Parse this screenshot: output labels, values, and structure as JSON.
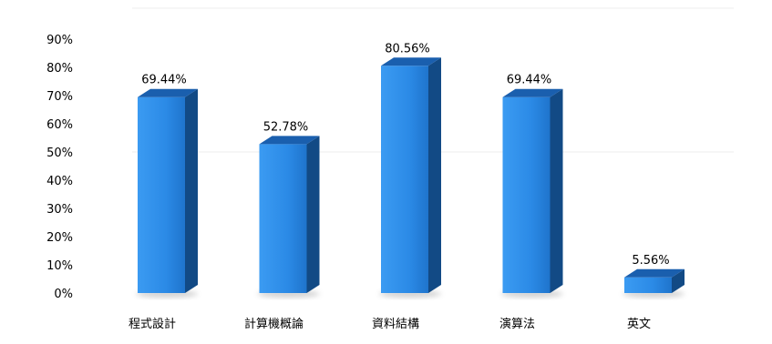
{
  "chart_data": {
    "type": "bar",
    "categories": [
      "程式設計",
      "計算機概論",
      "資料結構",
      "演算法",
      "英文"
    ],
    "values": [
      69.44,
      52.78,
      80.56,
      69.44,
      5.56
    ],
    "data_labels": [
      "69.44%",
      "52.78%",
      "80.56%",
      "69.44%",
      "5.56%"
    ],
    "yticks": [
      "0%",
      "10%",
      "20%",
      "30%",
      "40%",
      "50%",
      "60%",
      "70%",
      "80%",
      "90%"
    ],
    "ylim": [
      0,
      90
    ],
    "grid": true,
    "legend": "none",
    "bar_color": "#2b8ae6"
  }
}
